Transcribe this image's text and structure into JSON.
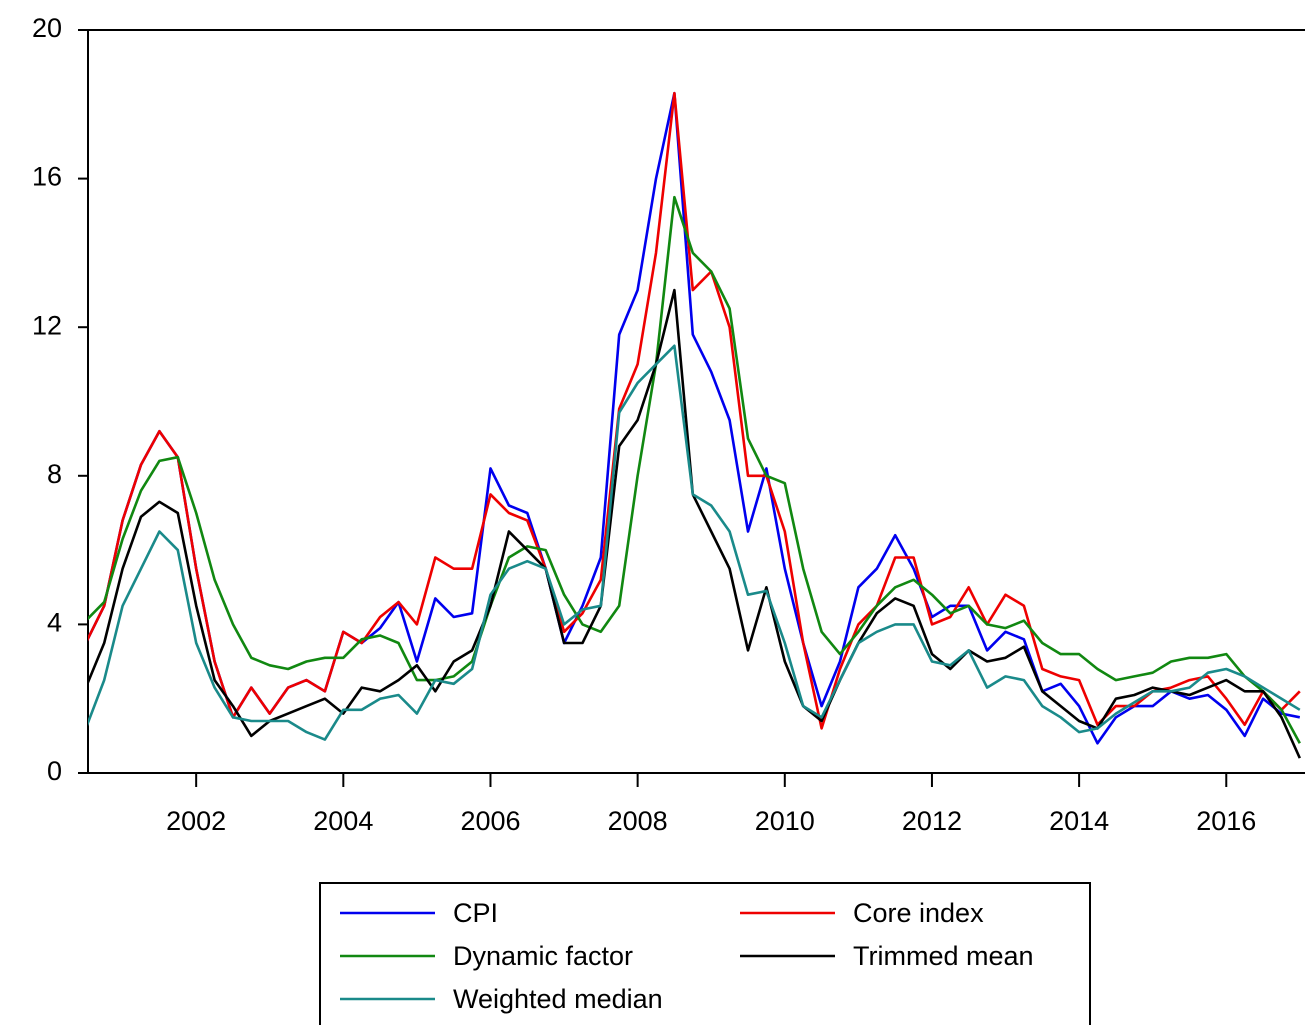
{
  "chart_data": {
    "type": "line",
    "x": [
      2000.5,
      2000.75,
      2001,
      2001.25,
      2001.5,
      2001.75,
      2002,
      2002.25,
      2002.5,
      2002.75,
      2003,
      2003.25,
      2003.5,
      2003.75,
      2004,
      2004.25,
      2004.5,
      2004.75,
      2005,
      2005.25,
      2005.5,
      2005.75,
      2006,
      2006.25,
      2006.5,
      2006.75,
      2007,
      2007.25,
      2007.5,
      2007.75,
      2008,
      2008.25,
      2008.5,
      2008.75,
      2009,
      2009.25,
      2009.5,
      2009.75,
      2010,
      2010.25,
      2010.5,
      2010.75,
      2011,
      2011.25,
      2011.5,
      2011.75,
      2012,
      2012.25,
      2012.5,
      2012.75,
      2013,
      2013.25,
      2013.5,
      2013.75,
      2014,
      2014.25,
      2014.5,
      2014.75,
      2015,
      2015.25,
      2015.5,
      2015.75,
      2016,
      2016.25,
      2016.5,
      2016.75,
      2017
    ],
    "series": [
      {
        "name": "CPI",
        "color": "#0000ee",
        "values": [
          3.5,
          4.5,
          6.8,
          8.3,
          9.2,
          8.5,
          5.5,
          3.0,
          1.5,
          2.3,
          1.6,
          2.3,
          2.5,
          2.2,
          3.8,
          3.5,
          3.9,
          4.6,
          3.0,
          4.7,
          4.2,
          4.3,
          8.2,
          7.2,
          7.0,
          5.5,
          3.5,
          4.5,
          5.8,
          11.8,
          13.0,
          16.0,
          18.3,
          11.8,
          10.8,
          9.5,
          6.5,
          8.2,
          5.5,
          3.5,
          1.8,
          3.0,
          5.0,
          5.5,
          6.4,
          5.5,
          4.2,
          4.5,
          4.5,
          3.3,
          3.8,
          3.6,
          2.2,
          2.4,
          1.8,
          0.8,
          1.5,
          1.8,
          1.8,
          2.2,
          2.0,
          2.1,
          1.7,
          1.0,
          2.0,
          1.6,
          1.5
        ]
      },
      {
        "name": "Core index",
        "color": "#ee0000",
        "values": [
          3.5,
          4.5,
          6.8,
          8.3,
          9.2,
          8.5,
          5.5,
          3.0,
          1.5,
          2.3,
          1.6,
          2.3,
          2.5,
          2.2,
          3.8,
          3.5,
          4.2,
          4.6,
          4.0,
          5.8,
          5.5,
          5.5,
          7.5,
          7.0,
          6.8,
          5.5,
          3.8,
          4.3,
          5.2,
          9.8,
          11.0,
          14.0,
          18.3,
          13.0,
          13.5,
          12.0,
          8.0,
          8.0,
          6.5,
          3.5,
          1.2,
          2.8,
          4.0,
          4.5,
          5.8,
          5.8,
          4.0,
          4.2,
          5.0,
          4.0,
          4.8,
          4.5,
          2.8,
          2.6,
          2.5,
          1.3,
          1.8,
          1.8,
          2.2,
          2.3,
          2.5,
          2.6,
          2.0,
          1.3,
          2.2,
          1.7,
          2.2
        ]
      },
      {
        "name": "Dynamic factor",
        "color": "#118811",
        "values": [
          4.1,
          4.6,
          6.3,
          7.6,
          8.4,
          8.5,
          7.0,
          5.2,
          4.0,
          3.1,
          2.9,
          2.8,
          3.0,
          3.1,
          3.1,
          3.6,
          3.7,
          3.5,
          2.5,
          2.5,
          2.6,
          3.0,
          4.5,
          5.8,
          6.1,
          6.0,
          4.8,
          4.0,
          3.8,
          4.5,
          8.0,
          11.0,
          15.5,
          14.0,
          13.5,
          12.5,
          9.0,
          8.0,
          7.8,
          5.5,
          3.8,
          3.2,
          3.8,
          4.5,
          5.0,
          5.2,
          4.8,
          4.3,
          4.5,
          4.0,
          3.9,
          4.1,
          3.5,
          3.2,
          3.2,
          2.8,
          2.5,
          2.6,
          2.7,
          3.0,
          3.1,
          3.1,
          3.2,
          2.6,
          2.2,
          1.7,
          0.8
        ]
      },
      {
        "name": "Trimmed mean",
        "color": "#000000",
        "values": [
          2.3,
          3.5,
          5.5,
          6.9,
          7.3,
          7.0,
          4.5,
          2.5,
          1.8,
          1.0,
          1.4,
          1.6,
          1.8,
          2.0,
          1.6,
          2.3,
          2.2,
          2.5,
          2.9,
          2.2,
          3.0,
          3.3,
          4.5,
          6.5,
          6.0,
          5.5,
          3.5,
          3.5,
          4.5,
          8.8,
          9.5,
          11.0,
          13.0,
          7.5,
          6.5,
          5.5,
          3.3,
          5.0,
          3.0,
          1.8,
          1.4,
          2.5,
          3.5,
          4.3,
          4.7,
          4.5,
          3.2,
          2.8,
          3.3,
          3.0,
          3.1,
          3.4,
          2.2,
          1.8,
          1.4,
          1.2,
          2.0,
          2.1,
          2.3,
          2.2,
          2.1,
          2.3,
          2.5,
          2.2,
          2.2,
          1.5,
          0.4
        ]
      },
      {
        "name": "Weighted median",
        "color": "#1a8a8a",
        "values": [
          1.2,
          2.5,
          4.5,
          5.5,
          6.5,
          6.0,
          3.5,
          2.3,
          1.5,
          1.4,
          1.4,
          1.4,
          1.1,
          0.9,
          1.7,
          1.7,
          2.0,
          2.1,
          1.6,
          2.5,
          2.4,
          2.8,
          4.8,
          5.5,
          5.7,
          5.5,
          4.0,
          4.4,
          4.5,
          9.7,
          10.5,
          11.0,
          11.5,
          7.5,
          7.2,
          6.5,
          4.8,
          4.9,
          3.5,
          1.8,
          1.5,
          2.5,
          3.5,
          3.8,
          4.0,
          4.0,
          3.0,
          2.9,
          3.3,
          2.3,
          2.6,
          2.5,
          1.8,
          1.5,
          1.1,
          1.2,
          1.6,
          1.9,
          2.2,
          2.2,
          2.3,
          2.7,
          2.8,
          2.6,
          2.3,
          2.0,
          1.7
        ]
      }
    ],
    "xlim": [
      2000.53,
      2017.07
    ],
    "xticks": [
      2002,
      2004,
      2006,
      2008,
      2010,
      2012,
      2014,
      2016
    ],
    "ylim": [
      0,
      20
    ],
    "yticks": [
      0,
      4,
      8,
      12,
      16,
      20
    ],
    "legend": "bottom"
  }
}
